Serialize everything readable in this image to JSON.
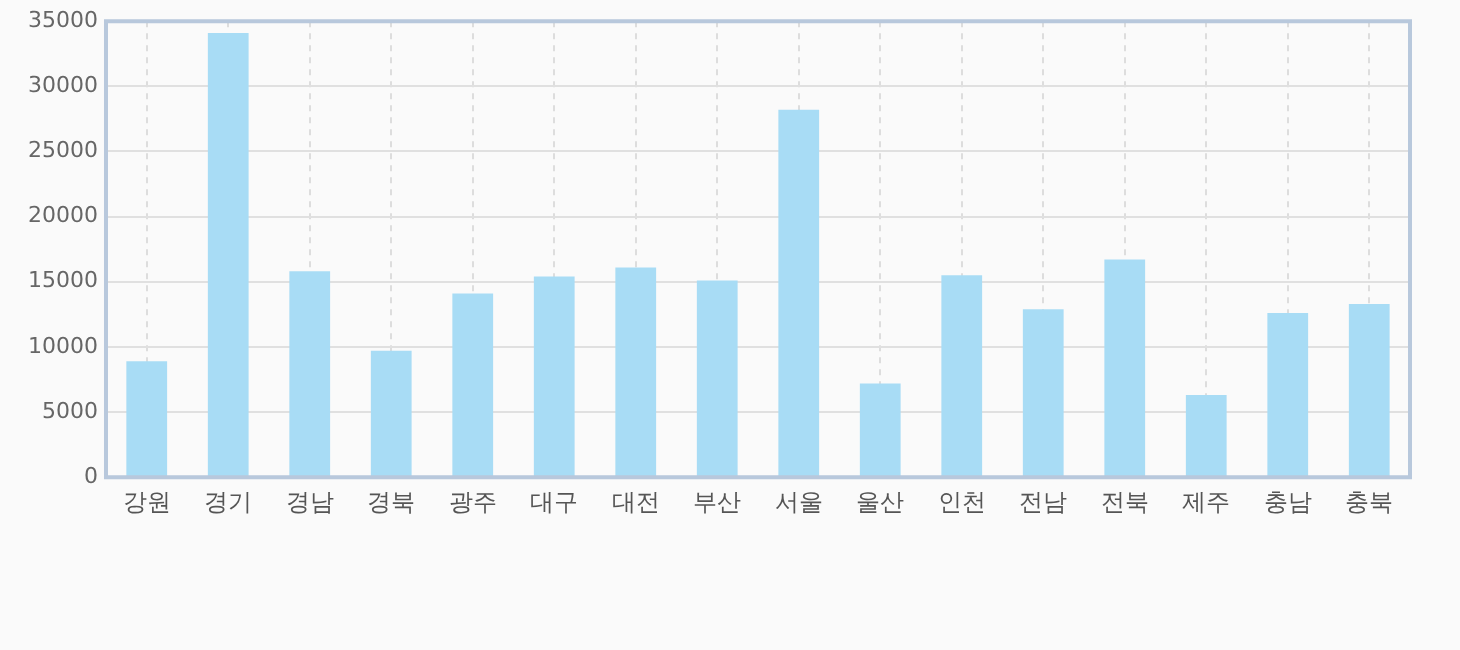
{
  "chart_data": {
    "type": "bar",
    "categories": [
      "강원",
      "경기",
      "경남",
      "경북",
      "광주",
      "대구",
      "대전",
      "부산",
      "서울",
      "울산",
      "인천",
      "전남",
      "전북",
      "제주",
      "충남",
      "충북"
    ],
    "values": [
      8900,
      34100,
      15800,
      9700,
      14100,
      15400,
      16100,
      15100,
      28200,
      7200,
      15500,
      12900,
      16700,
      6300,
      12600,
      13300
    ],
    "color": "#a8dcf5",
    "ylim": [
      0,
      35000
    ],
    "yticks": [
      0,
      5000,
      10000,
      15000,
      20000,
      25000,
      30000,
      35000
    ],
    "grid": true
  }
}
